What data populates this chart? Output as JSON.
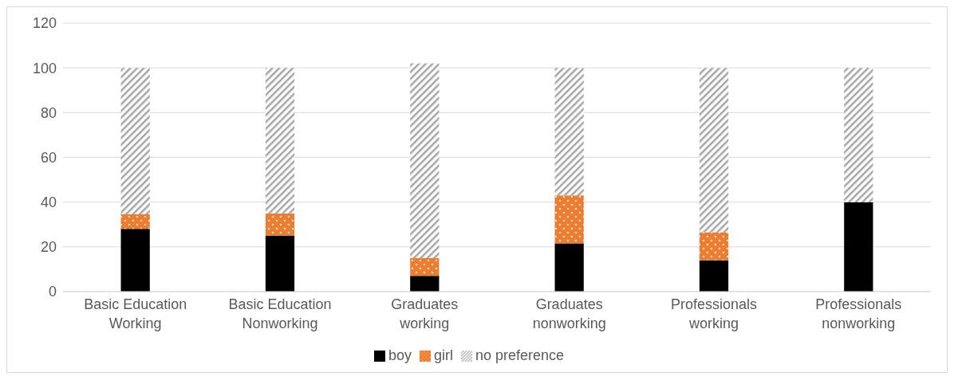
{
  "chart_data": {
    "type": "bar",
    "stacked": true,
    "categories": [
      "Basic Education Working",
      "Basic Education Nonworking",
      "Graduates working",
      "Graduates nonworking",
      "Professionals working",
      "Professionals nonworking"
    ],
    "series": [
      {
        "name": "boy",
        "color": "#000000",
        "values": [
          28,
          25,
          7,
          21.5,
          14,
          40
        ]
      },
      {
        "name": "girl",
        "color": "#ed7d31",
        "values": [
          6.5,
          10,
          8,
          21.5,
          12.5,
          0
        ]
      },
      {
        "name": "no preference",
        "color": "#a6a6a6",
        "values": [
          65.5,
          65,
          87,
          57,
          73.5,
          60
        ]
      }
    ],
    "ylim": [
      0,
      120
    ],
    "yticks": [
      0,
      20,
      40,
      60,
      80,
      100,
      120
    ],
    "grid": "y",
    "legend": "bottom"
  }
}
